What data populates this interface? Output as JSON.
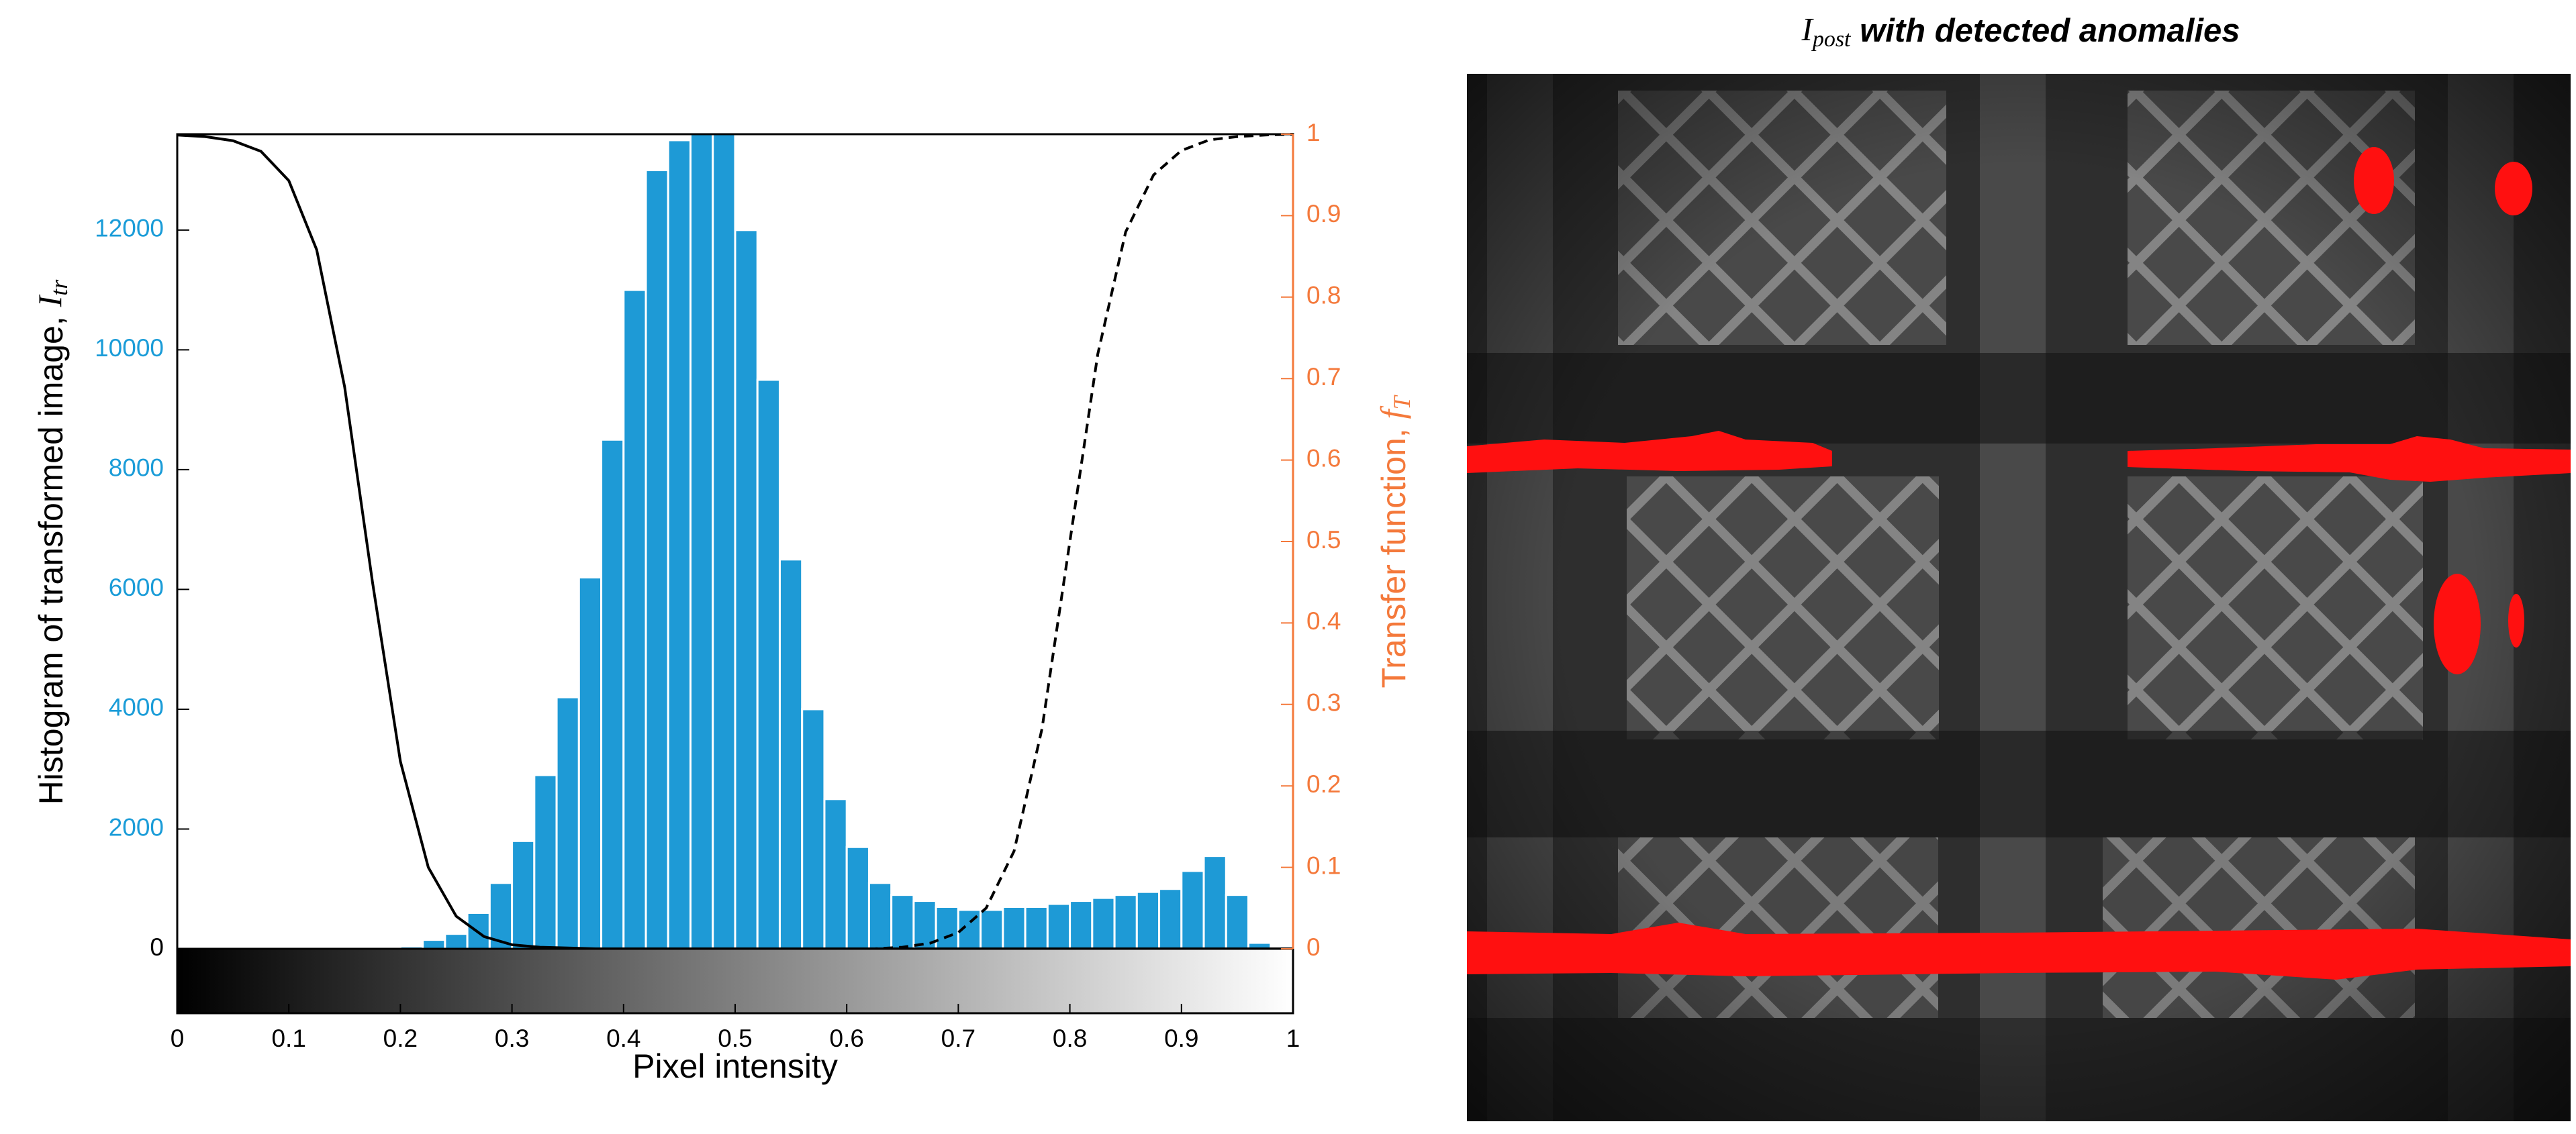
{
  "chart_data": {
    "type": "histogram",
    "xlabel": "Pixel intensity",
    "ylabel": {
      "text": "Histogram of transformed image, ",
      "symbol": "I",
      "subscript": "tr"
    },
    "y2label": {
      "text": "Transfer function, ",
      "symbol": "f",
      "subscript": "T"
    },
    "bins": [
      0,
      0.02,
      0.04,
      0.06,
      0.08,
      0.1,
      0.12,
      0.14,
      0.16,
      0.18,
      0.2,
      0.22,
      0.24,
      0.26,
      0.28,
      0.3,
      0.32,
      0.34,
      0.36,
      0.38,
      0.4,
      0.42,
      0.44,
      0.46,
      0.48,
      0.5,
      0.52,
      0.54,
      0.56,
      0.58,
      0.6,
      0.62,
      0.64,
      0.66,
      0.68,
      0.7,
      0.72,
      0.74,
      0.76,
      0.78,
      0.8,
      0.82,
      0.84,
      0.86,
      0.88,
      0.9,
      0.92,
      0.94,
      0.96,
      0.98,
      1
    ],
    "counts": [
      0,
      0,
      0,
      0,
      0,
      0,
      0,
      0,
      0,
      0,
      40,
      150,
      250,
      600,
      1100,
      1800,
      2900,
      4200,
      6200,
      8500,
      11000,
      13000,
      13500,
      13600,
      13600,
      12000,
      9500,
      6500,
      4000,
      2500,
      1700,
      1100,
      900,
      800,
      700,
      650,
      650,
      700,
      700,
      750,
      800,
      850,
      900,
      950,
      1000,
      1300,
      1550,
      900,
      100,
      0
    ],
    "color": "#1e9ad6",
    "curve_x": [
      0,
      0.025,
      0.05,
      0.075,
      0.1,
      0.125,
      0.15,
      0.175,
      0.2,
      0.225,
      0.25,
      0.275,
      0.3,
      0.325,
      0.35,
      0.375,
      0.4,
      0.425,
      0.45,
      0.475,
      0.5,
      0.525,
      0.55,
      0.575,
      0.6,
      0.625,
      0.65,
      0.675,
      0.7,
      0.725,
      0.75,
      0.775,
      0.8,
      0.825,
      0.85,
      0.875,
      0.9,
      0.925,
      0.95,
      0.975,
      1
    ],
    "curves": [
      {
        "style": "solid",
        "color": "#000000",
        "axis": "y2",
        "values": [
          0.999,
          0.997,
          0.992,
          0.979,
          0.943,
          0.858,
          0.69,
          0.45,
          0.23,
          0.1,
          0.04,
          0.015,
          0.005,
          0.002,
          0.001,
          0,
          0,
          0,
          0,
          0,
          0,
          0,
          0,
          0,
          0,
          0,
          0,
          0,
          0,
          0,
          0,
          0,
          0,
          0,
          0,
          0,
          0,
          0,
          0,
          0,
          0
        ]
      },
      {
        "style": "dashed",
        "color": "#000000",
        "axis": "y2",
        "values": [
          null,
          null,
          null,
          null,
          null,
          null,
          null,
          null,
          null,
          null,
          null,
          null,
          null,
          null,
          null,
          null,
          null,
          null,
          null,
          null,
          null,
          null,
          0,
          0,
          0,
          0,
          0.002,
          0.007,
          0.02,
          0.05,
          0.12,
          0.27,
          0.5,
          0.73,
          0.88,
          0.95,
          0.98,
          0.993,
          0.997,
          0.999,
          1
        ]
      }
    ],
    "xlim": [
      0,
      1
    ],
    "xticks": [
      0,
      0.1,
      0.2,
      0.3,
      0.4,
      0.5,
      0.6,
      0.7,
      0.8,
      0.9,
      1
    ],
    "ylim": [
      0,
      13600
    ],
    "yticks": [
      0,
      2000,
      4000,
      6000,
      8000,
      10000,
      12000
    ],
    "y2lim": [
      0,
      1
    ],
    "y2ticks": [
      0,
      0.1,
      0.2,
      0.3,
      0.4,
      0.5,
      0.6,
      0.7,
      0.8,
      0.9,
      1
    ],
    "ycolor": "#1a9cd8",
    "y2color": "#f4793b",
    "grid": false
  },
  "image_panel": {
    "title": {
      "symbol": "I",
      "subscript": "post",
      "text": " with detected anomalies"
    }
  }
}
